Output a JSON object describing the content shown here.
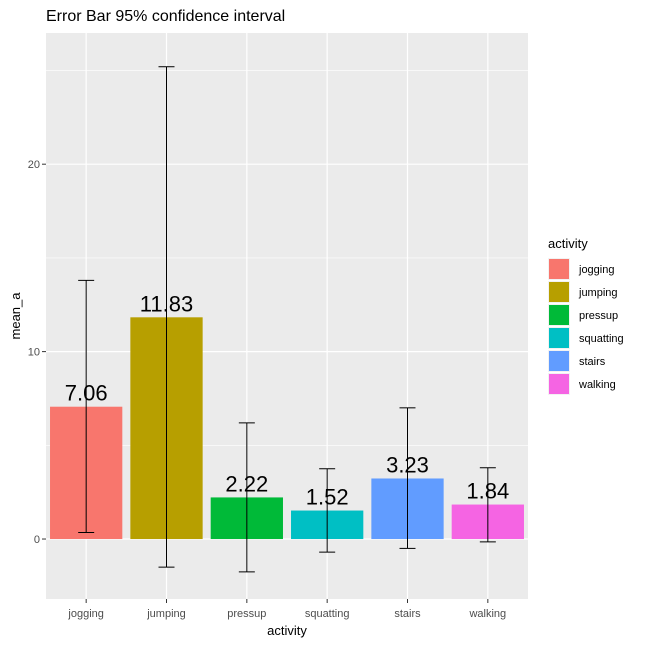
{
  "chart_data": {
    "type": "bar",
    "title": "Error Bar 95% confidence interval",
    "xlabel": "activity",
    "ylabel": "mean_a",
    "categories": [
      "jogging",
      "jumping",
      "pressup",
      "squatting",
      "stairs",
      "walking"
    ],
    "values": [
      7.06,
      11.83,
      2.22,
      1.52,
      3.23,
      1.84
    ],
    "data_labels": [
      "7.06",
      "11.83",
      "2.22",
      "1.52",
      "3.23",
      "1.84"
    ],
    "error_low": [
      0.35,
      -1.5,
      -1.75,
      -0.7,
      -0.5,
      -0.15
    ],
    "error_high": [
      13.8,
      25.2,
      6.2,
      3.75,
      7.0,
      3.8
    ],
    "colors": [
      "#F8766D",
      "#B79F00",
      "#00BA38",
      "#00BFC4",
      "#619CFF",
      "#F564E3"
    ],
    "ylim": [
      -3.2,
      27.0
    ],
    "y_ticks": [
      0,
      10,
      20
    ],
    "y_tick_labels": [
      "0",
      "10",
      "20"
    ],
    "grid": true,
    "legend": {
      "title": "activity",
      "placement": "right",
      "entries": [
        "jogging",
        "jumping",
        "pressup",
        "squatting",
        "stairs",
        "walking"
      ]
    }
  }
}
